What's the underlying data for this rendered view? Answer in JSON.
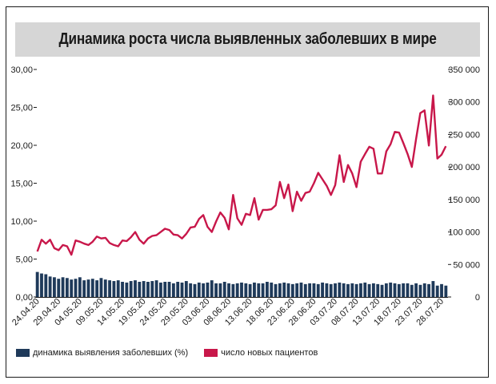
{
  "title": "Динамика роста числа выявленных заболевших в мире",
  "colors": {
    "bars": "#1f3a5a",
    "line": "#c8174a",
    "title_bg": "#d6d6d6",
    "frame": "#1a1a1a"
  },
  "chart_data": {
    "type": "bar+line",
    "categories": [
      "24.04.20",
      "25.04.20",
      "26.04.20",
      "27.04.20",
      "28.04.20",
      "29.04.20",
      "30.04.20",
      "01.05.20",
      "02.05.20",
      "03.05.20",
      "04.05.20",
      "05.05.20",
      "06.05.20",
      "07.05.20",
      "08.05.20",
      "09.05.20",
      "10.05.20",
      "11.05.20",
      "12.05.20",
      "13.05.20",
      "14.05.20",
      "15.05.20",
      "16.05.20",
      "17.05.20",
      "18.05.20",
      "19.05.20",
      "20.05.20",
      "21.05.20",
      "22.05.20",
      "23.05.20",
      "24.05.20",
      "25.05.20",
      "26.05.20",
      "27.05.20",
      "28.05.20",
      "29.05.20",
      "30.05.20",
      "31.05.20",
      "01.06.20",
      "02.06.20",
      "03.06.20",
      "04.06.20",
      "05.06.20",
      "06.06.20",
      "07.06.20",
      "08.06.20",
      "09.06.20",
      "10.06.20",
      "11.06.20",
      "12.06.20",
      "13.06.20",
      "14.06.20",
      "15.06.20",
      "16.06.20",
      "17.06.20",
      "18.06.20",
      "19.06.20",
      "20.06.20",
      "21.06.20",
      "22.06.20",
      "23.06.20",
      "24.06.20",
      "25.06.20",
      "26.06.20",
      "27.06.20",
      "28.06.20",
      "29.06.20",
      "30.06.20",
      "01.07.20",
      "02.07.20",
      "03.07.20",
      "04.07.20",
      "05.07.20",
      "06.07.20",
      "07.07.20",
      "08.07.20",
      "09.07.20",
      "10.07.20",
      "11.07.20",
      "12.07.20",
      "13.07.20",
      "14.07.20",
      "15.07.20",
      "16.07.20",
      "17.07.20",
      "18.07.20",
      "19.07.20",
      "20.07.20",
      "21.07.20",
      "22.07.20",
      "23.07.20",
      "24.07.20",
      "25.07.20",
      "26.07.20",
      "27.07.20",
      "28.07.20",
      "29.07.20"
    ],
    "x_tick_labels": [
      "24.04.20",
      "29.04.20",
      "04.05.20",
      "09.05.20",
      "14.05.20",
      "19.05.20",
      "24.05.20",
      "29.05.20",
      "03.06.20",
      "08.06.20",
      "13.06.20",
      "18.06.20",
      "23.06.20",
      "28.06.20",
      "03.07.20",
      "08.07.20",
      "13.07.20",
      "18.07.20",
      "23.07.20",
      "28.07.20"
    ],
    "y_left": {
      "min": 0,
      "max": 30,
      "ticks": [
        "0,00",
        "5,00",
        "10,00",
        "15,00",
        "20,00",
        "25,00",
        "30,00"
      ]
    },
    "y_right": {
      "min": 0,
      "max": 350000,
      "ticks": [
        "0",
        "50 000",
        "100 000",
        "150 000",
        "200 000",
        "250 000",
        "300 000",
        "350 000"
      ]
    },
    "series": [
      {
        "name": "динамика выявления заболевших (%)",
        "type": "bar",
        "axis": "left",
        "values": [
          3.3,
          3.1,
          3.0,
          2.7,
          2.6,
          2.4,
          2.6,
          2.5,
          2.3,
          2.4,
          2.6,
          2.2,
          2.3,
          2.4,
          2.2,
          2.5,
          2.3,
          2.2,
          2.1,
          2.2,
          2.0,
          1.9,
          2.1,
          2.2,
          2.0,
          2.1,
          2.0,
          2.1,
          2.2,
          1.9,
          2.0,
          2.0,
          1.8,
          2.0,
          1.9,
          2.1,
          1.8,
          1.7,
          1.9,
          1.8,
          1.9,
          2.2,
          1.8,
          1.8,
          2.0,
          1.8,
          1.7,
          1.8,
          1.9,
          1.8,
          1.7,
          1.9,
          1.8,
          1.8,
          2.0,
          1.9,
          1.7,
          1.8,
          1.9,
          1.8,
          1.7,
          1.8,
          1.9,
          1.7,
          1.8,
          1.8,
          1.7,
          1.9,
          1.8,
          1.7,
          1.8,
          1.9,
          1.8,
          1.7,
          1.8,
          1.7,
          1.8,
          1.9,
          1.7,
          1.8,
          1.7,
          1.6,
          1.8,
          1.9,
          1.8,
          1.7,
          1.8,
          1.8,
          1.6,
          1.8,
          1.6,
          1.8,
          1.7,
          2.1,
          1.5,
          1.7,
          1.5
        ]
      },
      {
        "name": "число новых пациентов",
        "type": "line",
        "axis": "right",
        "values": [
          70000,
          88000,
          82000,
          88000,
          75000,
          72000,
          80000,
          78000,
          65000,
          87000,
          85000,
          82000,
          80000,
          85000,
          93000,
          90000,
          91000,
          83000,
          80000,
          78000,
          87000,
          86000,
          92000,
          100000,
          88000,
          82000,
          90000,
          94000,
          95000,
          100000,
          105000,
          103000,
          96000,
          95000,
          90000,
          97000,
          107000,
          108000,
          120000,
          126000,
          108000,
          100000,
          116000,
          130000,
          122000,
          104000,
          157000,
          121000,
          111000,
          128000,
          126000,
          152000,
          119000,
          134000,
          134000,
          135000,
          141000,
          177000,
          152000,
          173000,
          132000,
          162000,
          148000,
          160000,
          162000,
          175000,
          191000,
          181000,
          171000,
          157000,
          172000,
          218000,
          177000,
          203000,
          190000,
          169000,
          208000,
          220000,
          231000,
          228000,
          190000,
          190000,
          224000,
          235000,
          254000,
          253000,
          237000,
          220000,
          200000,
          243000,
          283000,
          287000,
          233000,
          310000,
          213000,
          219000,
          232000
        ]
      }
    ],
    "legend": "bottom-left",
    "grid": false
  }
}
